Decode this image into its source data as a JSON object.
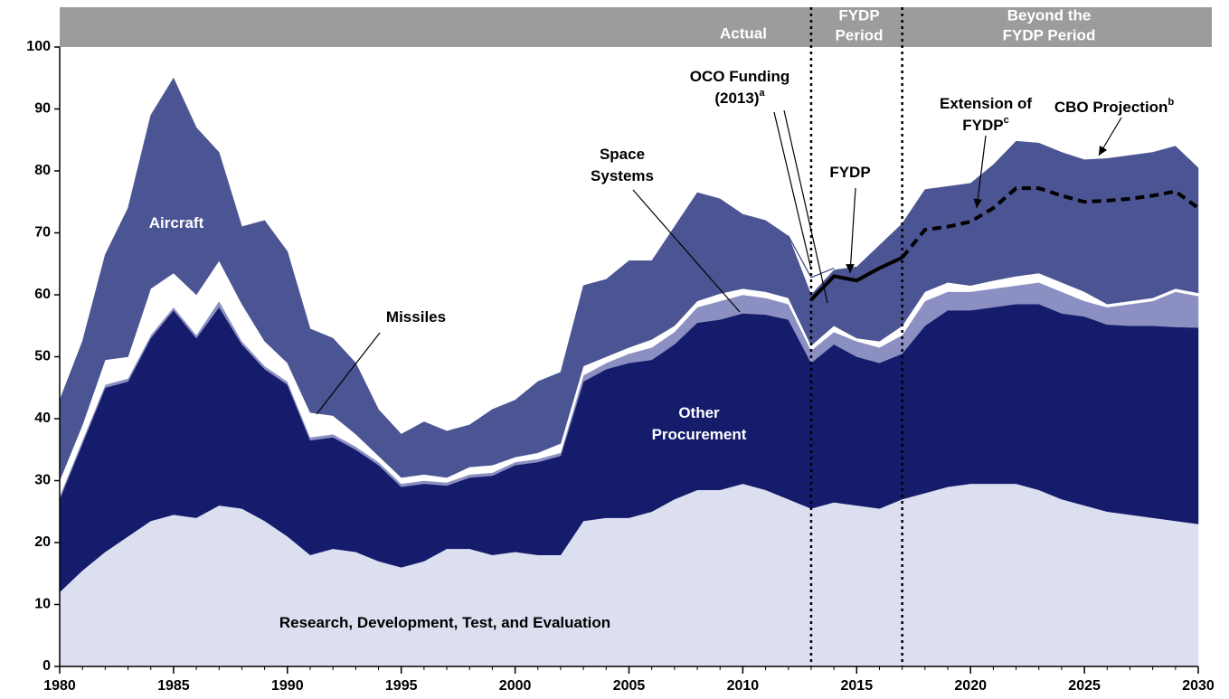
{
  "chart_data": {
    "type": "stacked_area",
    "x": [
      1980,
      1981,
      1982,
      1983,
      1984,
      1985,
      1986,
      1987,
      1988,
      1989,
      1990,
      1991,
      1992,
      1993,
      1994,
      1995,
      1996,
      1997,
      1998,
      1999,
      2000,
      2001,
      2002,
      2003,
      2004,
      2005,
      2006,
      2007,
      2008,
      2009,
      2010,
      2011,
      2012,
      2013,
      2014,
      2015,
      2016,
      2017,
      2018,
      2019,
      2020,
      2021,
      2022,
      2023,
      2024,
      2025,
      2026,
      2027,
      2028,
      2029,
      2030
    ],
    "series": [
      {
        "color": "#dcdff0",
        "values": [
          12,
          15.5,
          18.5,
          21,
          23.5,
          24.5,
          24,
          26,
          25.5,
          23.5,
          21,
          18,
          19,
          18.5,
          17,
          16,
          17,
          19,
          19,
          18,
          18.5,
          18,
          18,
          23.5,
          24,
          24,
          25,
          27,
          28.5,
          28.5,
          29.5,
          28.5,
          27,
          25.5,
          26.5,
          26,
          25.5,
          27,
          28,
          29,
          29.5,
          29.5,
          29.5,
          28.5,
          27,
          26,
          25,
          24.5,
          24,
          23.5,
          23
        ]
      },
      {
        "color": "#141c6b",
        "values": [
          15,
          20.5,
          26.5,
          25,
          29.5,
          33,
          29,
          32,
          26.5,
          24.5,
          24.5,
          18.5,
          18,
          16.5,
          15.5,
          13,
          12.5,
          10.2,
          11.5,
          12.8,
          14,
          15,
          16,
          22.5,
          24,
          25,
          24.5,
          25,
          27,
          27.5,
          27.5,
          28.3,
          29,
          23.5,
          25.5,
          24,
          23.5,
          23.5,
          27,
          28.5,
          28,
          28.5,
          29,
          30,
          30,
          30.5,
          30.2,
          30.5,
          31,
          31.3,
          31.7
        ]
      },
      {
        "color": "#8b8fc2",
        "values": [
          0.5,
          0.5,
          0.5,
          0.5,
          0.5,
          0.5,
          0.5,
          1,
          0.5,
          0.5,
          0.5,
          0.5,
          0.5,
          0.5,
          0.5,
          0.5,
          0.5,
          0.5,
          0.5,
          0.5,
          0.5,
          0.5,
          0.5,
          1,
          1,
          1.5,
          2,
          2,
          2.5,
          3,
          3,
          2.7,
          2.5,
          2,
          2,
          2.5,
          2.5,
          3,
          4,
          3,
          3,
          3,
          3,
          3.5,
          3.5,
          2.5,
          2.8,
          3.5,
          4,
          5.7,
          5.1
        ]
      },
      {
        "color": "#ffffff",
        "values": [
          2.5,
          2.5,
          4,
          3.5,
          7.5,
          5.5,
          6.5,
          6.5,
          6,
          4,
          3,
          4,
          3,
          2,
          1,
          1,
          1,
          0.8,
          1.2,
          1.2,
          0.8,
          1,
          1.5,
          1.5,
          1,
          1,
          1.3,
          1,
          1,
          1.2,
          1,
          1,
          1,
          0.8,
          1,
          0.5,
          1,
          1.5,
          1.5,
          1.5,
          1,
          1.3,
          1.5,
          1.5,
          1.5,
          1.5,
          0.5,
          0.5,
          0.5,
          0.5,
          0.5
        ]
      },
      {
        "color": "#4c5593",
        "values": [
          13,
          13.5,
          17,
          24,
          28,
          31.5,
          27,
          17.5,
          12.5,
          19.5,
          18,
          13.5,
          12.5,
          11.5,
          7.5,
          7,
          8.5,
          7.5,
          6.8,
          9,
          9.2,
          11.5,
          11.5,
          13,
          12.5,
          14,
          12.7,
          16,
          17.5,
          15.3,
          12,
          11.5,
          10,
          8.2,
          9,
          11.5,
          15.5,
          16.5,
          16.5,
          15.5,
          16.5,
          18.7,
          21.8,
          21,
          21,
          21.3,
          23.5,
          23.5,
          23.5,
          23,
          20.2
        ]
      }
    ],
    "lines": [
      {
        "style": "thin",
        "color": "#3a4280",
        "x": [
          2012,
          2013,
          2014
        ],
        "values": [
          69.5,
          62.8,
          64.3
        ]
      },
      {
        "style": "solid",
        "color": "#000000",
        "x": [
          2013,
          2014,
          2015,
          2016,
          2017
        ],
        "values": [
          59.2,
          63,
          62.3,
          64.3,
          66
        ]
      },
      {
        "style": "dashed",
        "color": "#000000",
        "x": [
          2017,
          2018,
          2019,
          2020,
          2021,
          2022,
          2023,
          2024,
          2025,
          2026,
          2027,
          2028,
          2029,
          2030
        ],
        "values": [
          66,
          70.5,
          71,
          71.8,
          74,
          77.2,
          77.2,
          76,
          75,
          75.2,
          75.5,
          76,
          76.7,
          74
        ]
      }
    ],
    "periods": [
      {
        "lines": [
          "Actual"
        ]
      },
      {
        "lines": [
          "FYDP",
          "Period"
        ]
      },
      {
        "lines": [
          "Beyond the",
          "FYDP Period"
        ]
      }
    ],
    "dividers": [
      2013,
      2017
    ],
    "annotations": [
      {
        "lines": [
          "Aircraft"
        ],
        "white": true
      },
      {
        "lines": [
          "Missiles"
        ]
      },
      {
        "lines": [
          "Space",
          "Systems"
        ]
      },
      {
        "lines": [
          "Other",
          "Procurement"
        ],
        "white": true
      },
      {
        "lines": [
          "Research, Development, Test, and Evaluation"
        ]
      },
      {
        "lines": [
          "OCO Funding",
          "(2013)"
        ],
        "sup": "a"
      },
      {
        "lines": [
          "FYDP"
        ]
      },
      {
        "lines": [
          "Extension of",
          "FYDP"
        ],
        "sup": "c"
      },
      {
        "lines": [
          "CBO Projection"
        ],
        "sup": "b"
      }
    ],
    "xlim": [
      1980,
      2030
    ],
    "xticks": [
      1980,
      1985,
      1990,
      1995,
      2000,
      2005,
      2010,
      2015,
      2020,
      2025,
      2030
    ],
    "ylim": [
      0,
      100
    ],
    "yticks": [
      0,
      10,
      20,
      30,
      40,
      50,
      60,
      70,
      80,
      90,
      100
    ]
  }
}
